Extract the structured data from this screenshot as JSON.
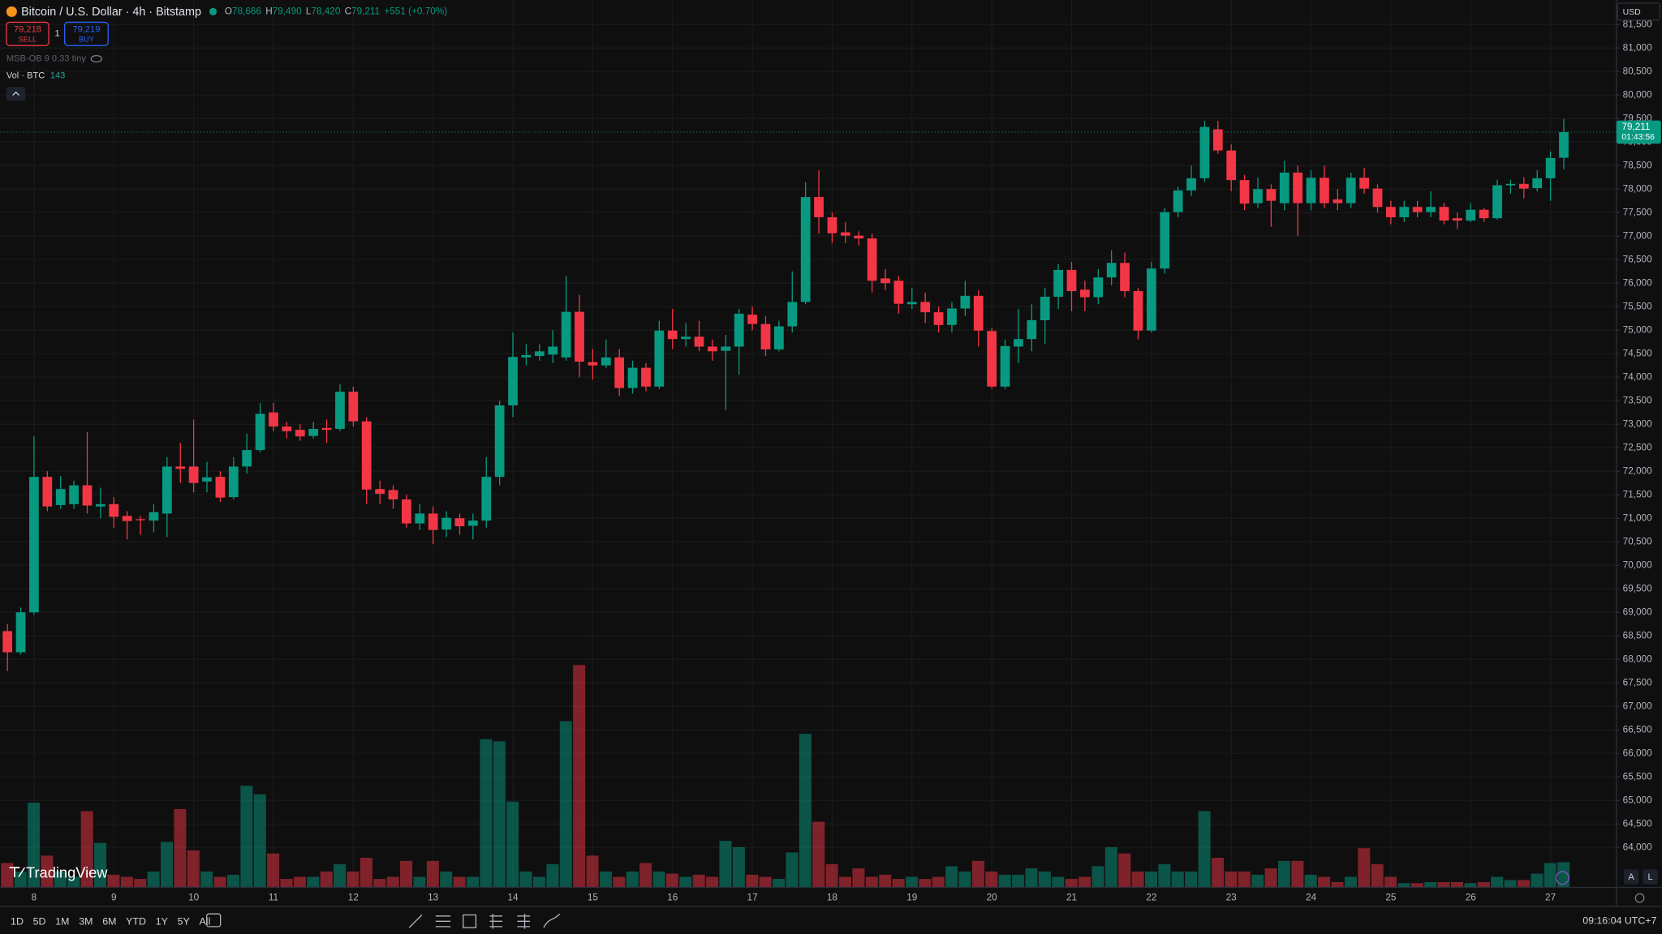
{
  "chart_data": {
    "type": "candlestick",
    "title": "Bitcoin / U.S. Dollar · 4h · Bitstamp",
    "header": {
      "o": "O",
      "open": "78,666",
      "h": "H",
      "high": "79,490",
      "l": "L",
      "low": "78,420",
      "c": "C",
      "close": "79,211",
      "change": "+551 (+0.70%)"
    },
    "sell_price": "79,218",
    "sell": "SELL",
    "quantity": "1",
    "buy_price": "79,219",
    "buy": "BUY",
    "indicator": "MSB-OB 9 0.33 tiny",
    "volume_label": "Vol · BTC",
    "currency": "USD",
    "last_price_label": "79,211",
    "countdown": "01:43:56",
    "logo": "TradingView",
    "scale_buttons": [
      "A",
      "L"
    ],
    "timeframes": [
      "1D",
      "5D",
      "1M",
      "3M",
      "6M",
      "YTD",
      "1Y",
      "5Y",
      "All"
    ],
    "clock": "09:16:04 UTC+7",
    "up_color": "#089981",
    "down_color": "#f23645",
    "x": [
      null,
      null,
      "8",
      null,
      null,
      null,
      null,
      null,
      "9",
      null,
      null,
      null,
      null,
      null,
      "10",
      null,
      null,
      null,
      null,
      null,
      "11",
      null,
      null,
      null,
      null,
      null,
      "12",
      null,
      null,
      null,
      null,
      null,
      "13",
      null,
      null,
      null,
      null,
      null,
      "14",
      null,
      null,
      null,
      null,
      null,
      "15",
      null,
      null,
      null,
      null,
      null,
      "16",
      null,
      null,
      null,
      null,
      null,
      "17",
      null,
      null,
      null,
      null,
      null,
      "18",
      null,
      null,
      null,
      null,
      null,
      "19",
      null,
      null,
      null,
      null,
      null,
      "20",
      null,
      null,
      null,
      null,
      null,
      "21",
      null,
      null,
      null,
      null,
      null,
      "22",
      null,
      null,
      null,
      null,
      null,
      "23",
      null,
      null,
      null,
      null,
      null,
      "24",
      null,
      null,
      null,
      null,
      null,
      "25",
      null,
      null,
      null,
      null,
      null,
      "26",
      null,
      null,
      null,
      null,
      null,
      "27",
      null
    ],
    "open": [
      68600,
      68150,
      69000,
      71880,
      71280,
      71300,
      71700,
      71250,
      71300,
      71050,
      70980,
      70950,
      71100,
      72100,
      72100,
      71780,
      71880,
      71450,
      72100,
      72450,
      73250,
      72950,
      72880,
      72750,
      72920,
      72900,
      73690,
      73060,
      71620,
      71600,
      71400,
      70890,
      71100,
      70760,
      71000,
      70840,
      70950,
      71880,
      73400,
      74420,
      74450,
      74480,
      74420,
      75390,
      74320,
      74250,
      74420,
      73770,
      74200,
      73800,
      74990,
      74810,
      74860,
      74650,
      74560,
      74650,
      75330,
      75130,
      74590,
      75080,
      75600,
      77830,
      77400,
      77080,
      77010,
      76950,
      76100,
      76050,
      75550,
      75600,
      75380,
      75110,
      75460,
      75730,
      74980,
      73800,
      74650,
      74810,
      75210,
      75710,
      76280,
      75860,
      75700,
      76120,
      76430,
      75830,
      74990,
      76310,
      77510,
      77970,
      78230,
      79270,
      78820,
      78190,
      77700,
      78000,
      77700,
      78350,
      77700,
      78240,
      77780,
      77700,
      78240,
      78010,
      77620,
      77400,
      77620,
      77510,
      77620,
      77380,
      77330,
      77560,
      77380,
      78080,
      78110,
      78020,
      78230,
      78666
    ],
    "high": [
      68750,
      69100,
      72740,
      72000,
      71900,
      71800,
      72830,
      71650,
      71450,
      71150,
      71050,
      71300,
      72300,
      72600,
      73100,
      72200,
      72000,
      72300,
      72800,
      73450,
      73450,
      73050,
      73000,
      73050,
      73100,
      73850,
      73800,
      73150,
      71800,
      71700,
      71500,
      71300,
      71250,
      71150,
      71100,
      71100,
      72300,
      73500,
      74950,
      74700,
      74700,
      75000,
      76150,
      75750,
      74600,
      74800,
      74600,
      74350,
      74300,
      75200,
      75450,
      75150,
      75200,
      74800,
      74900,
      75450,
      75500,
      75300,
      75200,
      76250,
      78150,
      78400,
      77500,
      77300,
      77100,
      77050,
      76300,
      76150,
      75900,
      75800,
      75500,
      75600,
      76050,
      75850,
      75050,
      74800,
      75450,
      75550,
      75900,
      76400,
      76450,
      76050,
      76300,
      76700,
      76650,
      75900,
      76450,
      77600,
      78050,
      78500,
      79450,
      79450,
      78950,
      78300,
      78250,
      78100,
      78600,
      78500,
      78400,
      78500,
      78000,
      78350,
      78450,
      78100,
      77750,
      77750,
      77750,
      77950,
      77700,
      77500,
      77700,
      77600,
      78200,
      78200,
      78250,
      78400,
      78800,
      79490
    ],
    "low": [
      67750,
      68100,
      68950,
      71150,
      71200,
      71200,
      71100,
      71000,
      70800,
      70550,
      70650,
      70700,
      70600,
      71750,
      71550,
      71550,
      71350,
      71400,
      71950,
      72400,
      72850,
      72700,
      72650,
      72700,
      72600,
      72850,
      72950,
      71300,
      71300,
      71200,
      70800,
      70750,
      70450,
      70600,
      70650,
      70550,
      70800,
      71700,
      73150,
      74250,
      74350,
      74300,
      74350,
      74000,
      73950,
      74200,
      73600,
      73650,
      73700,
      73750,
      74600,
      74650,
      74550,
      74350,
      73300,
      74050,
      75000,
      74450,
      74550,
      74950,
      75550,
      77050,
      76850,
      76850,
      76800,
      75800,
      75850,
      75350,
      75450,
      75150,
      74950,
      74950,
      75300,
      74650,
      73750,
      73750,
      74300,
      74550,
      74700,
      75450,
      75400,
      75400,
      75550,
      75950,
      75700,
      74800,
      74950,
      76200,
      77400,
      77850,
      78150,
      78750,
      77950,
      77550,
      77600,
      77200,
      77550,
      77000,
      77550,
      77600,
      77550,
      77600,
      77900,
      77500,
      77250,
      77300,
      77400,
      77400,
      77250,
      77150,
      77300,
      77300,
      77350,
      77900,
      77800,
      77950,
      77750,
      78420
    ],
    "close": [
      68150,
      69000,
      71880,
      71250,
      71620,
      71700,
      71270,
      71300,
      71030,
      70940,
      70960,
      71130,
      72100,
      72050,
      71750,
      71870,
      71440,
      72100,
      72450,
      73220,
      72950,
      72850,
      72740,
      72900,
      72880,
      73690,
      73060,
      71610,
      71520,
      71400,
      70890,
      71100,
      70750,
      71010,
      70830,
      70950,
      71880,
      73400,
      74430,
      74470,
      74550,
      74650,
      75390,
      74330,
      74250,
      74420,
      73770,
      74200,
      73800,
      74990,
      74810,
      74860,
      74650,
      74550,
      74650,
      75350,
      75130,
      74590,
      75080,
      75600,
      77830,
      77400,
      77060,
      77010,
      76950,
      76050,
      76000,
      75560,
      75600,
      75380,
      75110,
      75460,
      75730,
      74990,
      73800,
      74660,
      74810,
      75210,
      75710,
      76280,
      75830,
      75700,
      76120,
      76430,
      75830,
      74990,
      76310,
      77510,
      77970,
      78230,
      79320,
      78820,
      78190,
      77690,
      78000,
      77750,
      78350,
      77700,
      78240,
      77700,
      77700,
      78240,
      78010,
      77620,
      77400,
      77620,
      77510,
      77620,
      77330,
      77330,
      77560,
      77380,
      78080,
      78110,
      78010,
      78230,
      78660,
      79211
    ],
    "volume": [
      138,
      90,
      480,
      180,
      90,
      60,
      432,
      252,
      72,
      60,
      48,
      90,
      258,
      444,
      210,
      90,
      60,
      72,
      576,
      528,
      192,
      48,
      60,
      60,
      90,
      132,
      90,
      168,
      48,
      60,
      150,
      60,
      150,
      90,
      60,
      60,
      840,
      828,
      486,
      90,
      60,
      132,
      942,
      1260,
      180,
      90,
      60,
      90,
      138,
      90,
      78,
      60,
      72,
      60,
      264,
      228,
      72,
      60,
      48,
      198,
      870,
      372,
      132,
      60,
      108,
      60,
      72,
      48,
      60,
      48,
      60,
      120,
      90,
      150,
      90,
      72,
      72,
      108,
      90,
      60,
      48,
      60,
      120,
      228,
      192,
      90,
      90,
      132,
      90,
      90,
      432,
      168,
      90,
      90,
      72,
      108,
      150,
      150,
      72,
      60,
      30,
      60,
      222,
      132,
      60,
      24,
      24,
      30,
      30,
      30,
      24,
      30,
      60,
      42,
      42,
      78,
      138,
      143
    ],
    "ylim": [
      63150,
      82020
    ],
    "yticks": [
      {
        "value": 64000,
        "label": "64,000"
      },
      {
        "value": 64500,
        "label": "64,500"
      },
      {
        "value": 65000,
        "label": "65,000"
      },
      {
        "value": 65500,
        "label": "65,500"
      },
      {
        "value": 66000,
        "label": "66,000"
      },
      {
        "value": 66500,
        "label": "66,500"
      },
      {
        "value": 67000,
        "label": "67,000"
      },
      {
        "value": 67500,
        "label": "67,500"
      },
      {
        "value": 68000,
        "label": "68,000"
      },
      {
        "value": 68500,
        "label": "68,500"
      },
      {
        "value": 69000,
        "label": "69,000"
      },
      {
        "value": 69500,
        "label": "69,500"
      },
      {
        "value": 70000,
        "label": "70,000"
      },
      {
        "value": 70500,
        "label": "70,500"
      },
      {
        "value": 71000,
        "label": "71,000"
      },
      {
        "value": 71500,
        "label": "71,500"
      },
      {
        "value": 72000,
        "label": "72,000"
      },
      {
        "value": 72500,
        "label": "72,500"
      },
      {
        "value": 73000,
        "label": "73,000"
      },
      {
        "value": 73500,
        "label": "73,500"
      },
      {
        "value": 74000,
        "label": "74,000"
      },
      {
        "value": 74500,
        "label": "74,500"
      },
      {
        "value": 75000,
        "label": "75,000"
      },
      {
        "value": 75500,
        "label": "75,500"
      },
      {
        "value": 76000,
        "label": "76,000"
      },
      {
        "value": 76500,
        "label": "76,500"
      },
      {
        "value": 77000,
        "label": "77,000"
      },
      {
        "value": 77500,
        "label": "77,500"
      },
      {
        "value": 78000,
        "label": "78,000"
      },
      {
        "value": 78500,
        "label": "78,500"
      },
      {
        "value": 79000,
        "label": "79,000"
      },
      {
        "value": 79500,
        "label": "79,500"
      },
      {
        "value": 80000,
        "label": "80,000"
      },
      {
        "value": 80500,
        "label": "80,500"
      },
      {
        "value": 81000,
        "label": "81,000"
      },
      {
        "value": 81500,
        "label": "81,500"
      }
    ],
    "grid": true
  }
}
